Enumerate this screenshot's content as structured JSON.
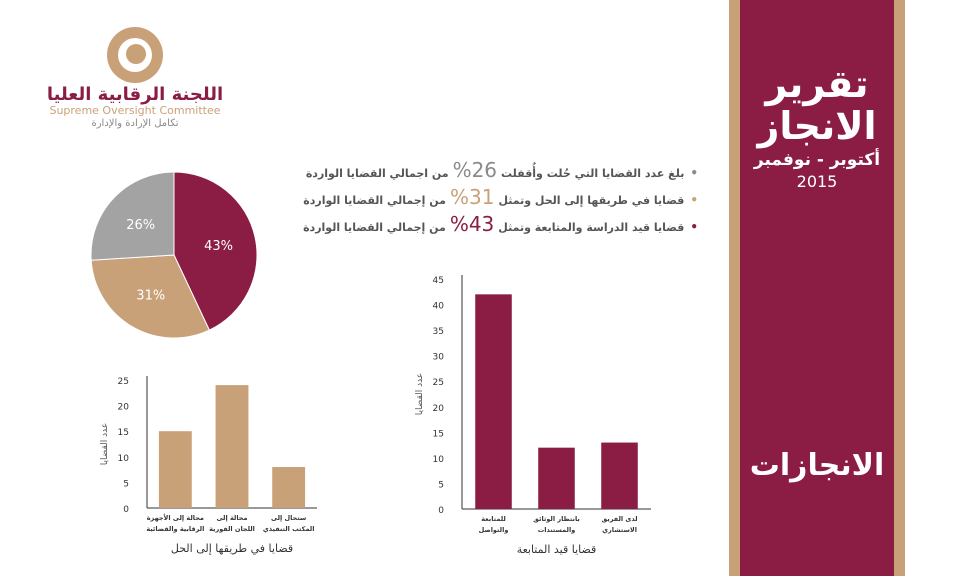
{
  "banner": {
    "title_line1": "تقرير",
    "title_line2": "الانجاز",
    "subtitle": "أكتوبر - نوفمبر",
    "year": "2015",
    "section": "الانجازات"
  },
  "org": {
    "name_ar": "اللجنة الرقابية العليا",
    "name_en": "Supreme Oversight Committee",
    "slogan": "تكامل الإرادة والإدارة"
  },
  "bullets": [
    {
      "pre": "بلغ عدد القضايا التي حُلت وأُقفلت",
      "pct": "26%",
      "post": "من اجمالي القضايا الواردة",
      "pct_color": "#8a8a8a"
    },
    {
      "pre": "قضايا في طريقها إلى الحل وتمثل",
      "pct": "31%",
      "post": "من إجمالي القضايا الواردة",
      "pct_color": "#c9a178"
    },
    {
      "pre": "قضايا قيد الدراسة والمتابعة وتمثل",
      "pct": "43%",
      "post": "من إجمالي القضايا الواردة",
      "pct_color": "#8b1d45"
    }
  ],
  "colors": {
    "maroon": "#8b1d45",
    "gold": "#c9a178",
    "gray": "#a3a3a3"
  },
  "chart_data": [
    {
      "type": "pie",
      "title": "",
      "slices": [
        {
          "label": "43%",
          "value": 43,
          "color": "#8b1d45"
        },
        {
          "label": "31%",
          "value": 31,
          "color": "#c9a178"
        },
        {
          "label": "26%",
          "value": 26,
          "color": "#a3a3a3"
        }
      ]
    },
    {
      "type": "bar",
      "title": "قضايا في طريقها إلى الحل",
      "ylabel": "عدد القضايا",
      "xlabel": "",
      "ylim": [
        0,
        25
      ],
      "yticks": [
        0,
        5,
        10,
        15,
        20,
        25
      ],
      "bar_color": "#c9a178",
      "categories": [
        [
          "محالة إلى الأجهزة",
          "الرقابية والقضائية"
        ],
        [
          "محالة إلى",
          "اللجان الفورية"
        ],
        [
          "ستحال إلى",
          "المكتب التنفيذي"
        ]
      ],
      "values": [
        15,
        24,
        8
      ]
    },
    {
      "type": "bar",
      "title": "قضايا قيد المتابعة",
      "ylabel": "عدد القضايا",
      "xlabel": "",
      "ylim": [
        0,
        45
      ],
      "yticks": [
        0,
        5,
        10,
        15,
        20,
        25,
        30,
        35,
        40,
        45
      ],
      "bar_color": "#8b1d45",
      "categories": [
        [
          "للمتابعة",
          "والتواصل"
        ],
        [
          "بانتظار الوثائق",
          "والمستندات"
        ],
        [
          "لدى الفريق",
          "الاستشاري"
        ]
      ],
      "values": [
        42,
        12,
        13
      ]
    }
  ]
}
